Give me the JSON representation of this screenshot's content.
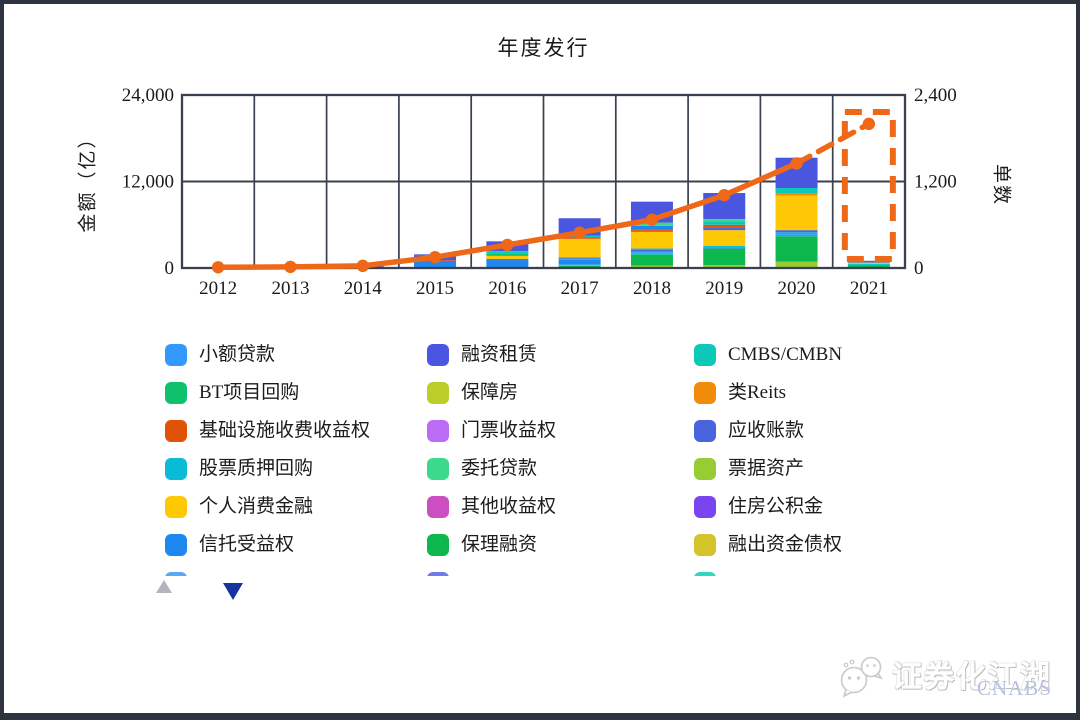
{
  "page": {
    "background": "#ffffff",
    "frame_color": "#2e3340"
  },
  "chart_data": {
    "type": "bar",
    "subtype": "stacked-bars-with-line",
    "title": "年度发行",
    "years": [
      "2012",
      "2013",
      "2014",
      "2015",
      "2016",
      "2017",
      "2018",
      "2019",
      "2020",
      "2021"
    ],
    "left_axis": {
      "title": "金额（亿）",
      "max": 24000,
      "ticks": [
        {
          "label": "0",
          "value": 0
        },
        {
          "label": "12,000",
          "value": 12000
        },
        {
          "label": "24,000",
          "value": 24000
        }
      ]
    },
    "right_axis": {
      "title": "单数",
      "max": 2400,
      "ticks": [
        {
          "label": "0",
          "value": 0
        },
        {
          "label": "1,200",
          "value": 1200
        },
        {
          "label": "2,400",
          "value": 2400
        }
      ]
    },
    "series": [
      {
        "name": "小额贷款",
        "color": "#3399ff"
      },
      {
        "name": "融资租赁",
        "color": "#4a55e0"
      },
      {
        "name": "CMBS/CMBN",
        "color": "#0bc8b8"
      },
      {
        "name": "BT项目回购",
        "color": "#0dc26b"
      },
      {
        "name": "保障房",
        "color": "#bcce2a"
      },
      {
        "name": "类Reits",
        "color": "#f08c0a"
      },
      {
        "name": "基础设施收费收益权",
        "color": "#e05206"
      },
      {
        "name": "门票收益权",
        "color": "#bc6bf5"
      },
      {
        "name": "应收账款",
        "color": "#4a64dd"
      },
      {
        "name": "股票质押回购",
        "color": "#0abbd6"
      },
      {
        "name": "委托贷款",
        "color": "#3bd98b"
      },
      {
        "name": "票据资产",
        "color": "#97cc33"
      },
      {
        "name": "个人消费金融",
        "color": "#ffc805"
      },
      {
        "name": "其他收益权",
        "color": "#cc4fc2"
      },
      {
        "name": "住房公积金",
        "color": "#7a44f0"
      },
      {
        "name": "信托受益权",
        "color": "#1e88f0"
      },
      {
        "name": "保理融资",
        "color": "#0cb74e"
      },
      {
        "name": "融出资金债权",
        "color": "#d4c32a"
      }
    ],
    "bars": [
      {
        "year": "2012",
        "segments": [
          {
            "name": "信托受益权",
            "value": 30
          }
        ]
      },
      {
        "year": "2013",
        "segments": [
          {
            "name": "信托受益权",
            "value": 25
          }
        ]
      },
      {
        "year": "2014",
        "segments": [
          {
            "name": "小额贷款",
            "value": 100
          },
          {
            "name": "融资租赁",
            "value": 150
          },
          {
            "name": "信托受益权",
            "value": 80
          }
        ]
      },
      {
        "year": "2015",
        "segments": [
          {
            "name": "信托受益权",
            "value": 900
          },
          {
            "name": "基础设施收费收益权",
            "value": 180
          },
          {
            "name": "融资租赁",
            "value": 700
          },
          {
            "name": "应收账款",
            "value": 120
          }
        ]
      },
      {
        "year": "2016",
        "segments": [
          {
            "name": "信托受益权",
            "value": 1100
          },
          {
            "name": "基础设施收费收益权",
            "value": 170
          },
          {
            "name": "个人消费金融",
            "value": 400
          },
          {
            "name": "其他收益权",
            "value": 120
          },
          {
            "name": "BT项目回购",
            "value": 200
          },
          {
            "name": "CMBS/CMBN",
            "value": 230
          },
          {
            "name": "类Reits",
            "value": 130
          },
          {
            "name": "融资租赁",
            "value": 1350
          }
        ]
      },
      {
        "year": "2017",
        "segments": [
          {
            "name": "保理融资",
            "value": 300
          },
          {
            "name": "委托贷款",
            "value": 150
          },
          {
            "name": "信托受益权",
            "value": 700
          },
          {
            "name": "股票质押回购",
            "value": 150
          },
          {
            "name": "应收账款",
            "value": 150
          },
          {
            "name": "个人消费金融",
            "value": 2600
          },
          {
            "name": "基础设施收费收益权",
            "value": 180
          },
          {
            "name": "CMBS/CMBN",
            "value": 270
          },
          {
            "name": "融资租赁",
            "value": 2400
          }
        ]
      },
      {
        "year": "2018",
        "segments": [
          {
            "name": "票据资产",
            "value": 350
          },
          {
            "name": "保理融资",
            "value": 1500
          },
          {
            "name": "CMBS/CMBN",
            "value": 250
          },
          {
            "name": "小额贷款",
            "value": 200
          },
          {
            "name": "应收账款",
            "value": 250
          },
          {
            "name": "股票质押回购",
            "value": 150
          },
          {
            "name": "个人消费金融",
            "value": 2300
          },
          {
            "name": "其他收益权",
            "value": 150
          },
          {
            "name": "基础设施收费收益权",
            "value": 200
          },
          {
            "name": "信托受益权",
            "value": 500
          },
          {
            "name": "委托贷款",
            "value": 450
          },
          {
            "name": "融资租赁",
            "value": 2900
          }
        ]
      },
      {
        "year": "2019",
        "segments": [
          {
            "name": "票据资产",
            "value": 400
          },
          {
            "name": "保理融资",
            "value": 2300
          },
          {
            "name": "小额贷款",
            "value": 200
          },
          {
            "name": "股票质押回购",
            "value": 150
          },
          {
            "name": "个人消费金融",
            "value": 2200
          },
          {
            "name": "应收账款",
            "value": 400
          },
          {
            "name": "基础设施收费收益权",
            "value": 350
          },
          {
            "name": "CMBS/CMBN",
            "value": 500
          },
          {
            "name": "委托贷款",
            "value": 300
          },
          {
            "name": "融资租赁",
            "value": 3600
          }
        ]
      },
      {
        "year": "2020",
        "segments": [
          {
            "name": "票据资产",
            "value": 900
          },
          {
            "name": "保理融资",
            "value": 3500
          },
          {
            "name": "小额贷款",
            "value": 300
          },
          {
            "name": "股票质押回购",
            "value": 250
          },
          {
            "name": "应收账款",
            "value": 300
          },
          {
            "name": "个人消费金融",
            "value": 4800
          },
          {
            "name": "类Reits",
            "value": 250
          },
          {
            "name": "CMBS/CMBN",
            "value": 800
          },
          {
            "name": "融资租赁",
            "value": 4200
          }
        ]
      },
      {
        "year": "2021",
        "segments": [
          {
            "name": "保理融资",
            "value": 350
          },
          {
            "name": "CMBS/CMBN",
            "value": 250
          },
          {
            "name": "个人消费金融",
            "value": 150
          },
          {
            "name": "应收账款",
            "value": 250
          }
        ]
      }
    ],
    "line": {
      "name": "单数",
      "color": "#ef6817",
      "values": [
        10,
        15,
        30,
        150,
        320,
        490,
        670,
        1010,
        1450,
        2000
      ],
      "dashed_from_index": 8
    },
    "highlight_box": {
      "year": "2021",
      "color": "#ef6817",
      "style": "dashed"
    }
  },
  "legend": {
    "partial_items": [
      {
        "label": "",
        "color": "#5aa7f7"
      },
      {
        "label": "",
        "color": "#6f7ce8"
      },
      {
        "label": "",
        "color": "#2fd6c2"
      }
    ],
    "nav": {
      "up_color": "#b4b4bd",
      "down_color": "#16339e"
    }
  },
  "watermark": {
    "title": "证券化江湖",
    "brand": "CNABS"
  }
}
